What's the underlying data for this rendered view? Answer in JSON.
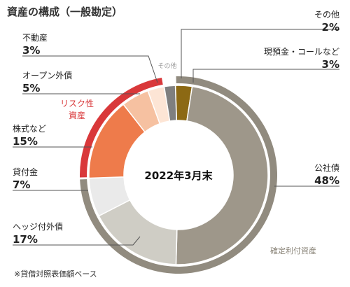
{
  "chart_data": {
    "type": "pie",
    "title": "資産の構成（一般勘定）",
    "center_label": "2022年3月末",
    "note": "※貸借対照表価額ベース",
    "unit": "%",
    "slices": [
      {
        "name": "現預金・コールなど",
        "value": 3,
        "value_label": "3%",
        "color": "#8c6914"
      },
      {
        "name": "公社債",
        "value": 48,
        "value_label": "48%",
        "color": "#9e978a"
      },
      {
        "name": "ヘッジ付外債",
        "value": 17,
        "value_label": "17%",
        "color": "#cfcdc5"
      },
      {
        "name": "貸付金",
        "value": 7,
        "value_label": "7%",
        "color": "#eaeaea"
      },
      {
        "name": "株式など",
        "value": 15,
        "value_label": "15%",
        "color": "#ee7b4b"
      },
      {
        "name": "オープン外債",
        "value": 5,
        "value_label": "5%",
        "color": "#f6c1a1"
      },
      {
        "name": "不動産",
        "value": 3,
        "value_label": "3%",
        "color": "#fde5d5"
      },
      {
        "name": "その他",
        "value": 2,
        "value_label": "2%",
        "color": "#7f7f7f"
      }
    ],
    "groups": [
      {
        "name": "リスク性\n資産",
        "members": [
          "株式など",
          "オープン外債",
          "不動産"
        ],
        "color": "#d9383a"
      },
      {
        "name": "確定利付資産",
        "members": [
          "現預金・コールなど",
          "公社債",
          "ヘッジ付外債",
          "貸付金"
        ],
        "color": "#918b7f"
      }
    ],
    "inner_label_その他": "その他"
  }
}
